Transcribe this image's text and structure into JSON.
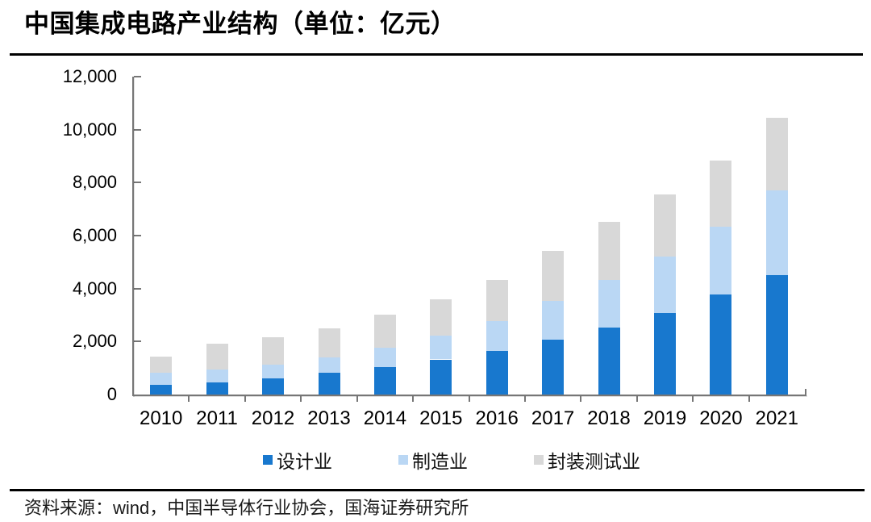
{
  "header": {
    "title": "中国集成电路产业结构（单位：亿元）"
  },
  "chart_data": {
    "type": "bar",
    "subtype": "stacked",
    "title": "中国集成电路产业结构（单位：亿元）",
    "unit": "亿元",
    "categories": [
      "2010",
      "2011",
      "2012",
      "2013",
      "2014",
      "2015",
      "2016",
      "2017",
      "2018",
      "2019",
      "2020",
      "2021"
    ],
    "series": [
      {
        "name": "设计业",
        "color": "#1878CE",
        "values": [
          363.9,
          473.7,
          621.7,
          808.8,
          1047.4,
          1325.0,
          1644.3,
          2073.5,
          2519.3,
          3063.5,
          3778.4,
          4519.0
        ]
      },
      {
        "name": "制造业",
        "color": "#BAD7F4",
        "values": [
          447.1,
          471.9,
          503.2,
          600.9,
          712.1,
          900.8,
          1126.9,
          1448.1,
          1818.2,
          2149.1,
          2560.1,
          3176.3
        ]
      },
      {
        "name": "封装测试业",
        "color": "#D8D8D8",
        "values": [
          629.2,
          988.1,
          1033.6,
          1098.8,
          1255.9,
          1384.0,
          1564.3,
          1889.7,
          2193.9,
          2349.7,
          2509.5,
          2763.0
        ]
      }
    ],
    "xlabel": "",
    "ylabel": "",
    "ylim": [
      0,
      12000
    ],
    "y_tick_labels": [
      "12,000",
      "10,000",
      "8,000",
      "6,000",
      "4,000",
      "2,000",
      "0"
    ],
    "grid": false,
    "legend_position": "bottom"
  },
  "source": {
    "prefix": "资料来源：",
    "vendor": "wind",
    "rest": "，中国半导体行业协会，国海证券研究所"
  }
}
